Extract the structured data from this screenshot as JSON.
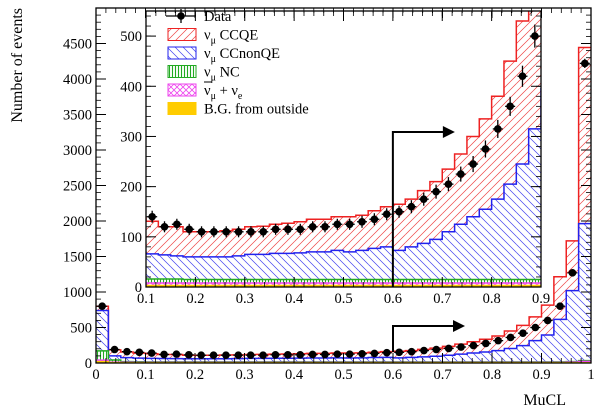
{
  "chart_data": [
    {
      "type": "histogram",
      "panel": "main",
      "xlabel": "MuCL",
      "ylabel": "Number of events",
      "xlim": [
        0,
        1
      ],
      "ylim": [
        0,
        5000
      ],
      "x_ticks": [
        0,
        0.1,
        0.2,
        0.3,
        0.4,
        0.5,
        0.6,
        0.7,
        0.8,
        0.9,
        1
      ],
      "x_tick_labels": [
        "0",
        "0.1",
        "0.2",
        "0.3",
        "0.4",
        "0.5",
        "0.6",
        "0.7",
        "0.8",
        "0.9",
        "1"
      ],
      "y_ticks": [
        0,
        500,
        1000,
        1500,
        2000,
        2500,
        3000,
        3500,
        4000,
        4500
      ],
      "y_tick_labels": [
        "0",
        "500",
        "1000",
        "1500",
        "2000",
        "2500",
        "3000",
        "3500",
        "4000",
        "4500"
      ],
      "bin_edges": [
        0,
        0.025,
        0.05,
        0.075,
        0.1,
        0.125,
        0.15,
        0.175,
        0.2,
        0.225,
        0.25,
        0.275,
        0.3,
        0.325,
        0.35,
        0.375,
        0.4,
        0.425,
        0.45,
        0.475,
        0.5,
        0.525,
        0.55,
        0.575,
        0.6,
        0.625,
        0.65,
        0.675,
        0.7,
        0.725,
        0.75,
        0.775,
        0.8,
        0.825,
        0.85,
        0.875,
        0.9,
        0.925,
        0.95,
        0.975,
        1
      ],
      "data_points": {
        "x": [
          0.0125,
          0.0375,
          0.0625,
          0.0875,
          0.1125,
          0.1375,
          0.1625,
          0.1875,
          0.2125,
          0.2375,
          0.2625,
          0.2875,
          0.3125,
          0.3375,
          0.3625,
          0.3875,
          0.4125,
          0.4375,
          0.4625,
          0.4875,
          0.5125,
          0.5375,
          0.5625,
          0.5875,
          0.6125,
          0.6375,
          0.6625,
          0.6875,
          0.7125,
          0.7375,
          0.7625,
          0.7875,
          0.8125,
          0.8375,
          0.8625,
          0.8875,
          0.9125,
          0.9375,
          0.9625,
          0.9875
        ],
        "y": [
          800,
          190,
          160,
          150,
          140,
          120,
          125,
          115,
          110,
          110,
          110,
          110,
          110,
          110,
          115,
          115,
          115,
          120,
          120,
          125,
          125,
          130,
          135,
          145,
          150,
          160,
          175,
          190,
          205,
          225,
          245,
          275,
          315,
          360,
          420,
          500,
          600,
          800,
          1270,
          4220
        ],
        "errors": [
          30,
          15,
          13,
          12,
          12,
          11,
          11,
          11,
          11,
          11,
          11,
          11,
          11,
          11,
          11,
          11,
          11,
          11,
          11,
          11,
          11,
          12,
          12,
          12,
          12,
          13,
          13,
          14,
          14,
          15,
          16,
          17,
          18,
          19,
          21,
          23,
          25,
          28,
          36,
          65
        ]
      },
      "series": [
        {
          "name": "B.G. from outside",
          "values": [
            20,
            5,
            4,
            3,
            3,
            3,
            3,
            3,
            3,
            3,
            3,
            3,
            3,
            3,
            3,
            3,
            3,
            3,
            3,
            3,
            3,
            3,
            3,
            3,
            3,
            3,
            3,
            3,
            3,
            3,
            3,
            3,
            3,
            3,
            3,
            3,
            3,
            3,
            3,
            3
          ]
        },
        {
          "name": "ν̄μ + νe",
          "values": [
            20,
            8,
            6,
            5,
            5,
            5,
            5,
            5,
            5,
            5,
            5,
            5,
            5,
            5,
            5,
            5,
            5,
            5,
            5,
            5,
            5,
            5,
            5,
            5,
            5,
            5,
            5,
            5,
            5,
            5,
            5,
            5,
            5,
            5,
            5,
            5,
            5,
            5,
            10,
            20
          ]
        },
        {
          "name": "νμ NC",
          "values": [
            130,
            30,
            10,
            9,
            8,
            8,
            8,
            7,
            7,
            7,
            7,
            7,
            7,
            7,
            7,
            7,
            7,
            7,
            7,
            7,
            7,
            7,
            7,
            7,
            7,
            7,
            7,
            7,
            7,
            7,
            7,
            7,
            7,
            7,
            7,
            7,
            7,
            7,
            7,
            10
          ]
        },
        {
          "name": "νμ CCnonQE",
          "values": [
            570,
            57,
            55,
            52,
            50,
            48,
            46,
            45,
            45,
            45,
            45,
            47,
            50,
            50,
            52,
            52,
            53,
            55,
            55,
            58,
            55,
            58,
            62,
            65,
            58,
            65,
            72,
            80,
            95,
            110,
            125,
            140,
            160,
            190,
            230,
            300,
            380,
            600,
            1000,
            1930
          ]
        },
        {
          "name": "νμ CCQE",
          "values": [
            60,
            85,
            80,
            70,
            65,
            56,
            58,
            50,
            50,
            50,
            52,
            53,
            55,
            56,
            58,
            60,
            62,
            65,
            65,
            67,
            70,
            70,
            75,
            80,
            92,
            95,
            105,
            115,
            125,
            140,
            160,
            180,
            205,
            245,
            285,
            335,
            420,
            600,
            700,
            2480
          ]
        }
      ],
      "colors": {
        "B.G. from outside": "#ffcc00",
        "ν̄μ + νe": "#ee44ee",
        "νμ NC": "#22aa22",
        "νμ CCnonQE": "#2222ee",
        "νμ CCQE": "#ee2222",
        "Data": "#000000"
      },
      "annotation": {
        "type": "arrow",
        "from_x": 0.6,
        "direction": "right"
      },
      "grid": false
    },
    {
      "type": "histogram",
      "panel": "inset",
      "xlim": [
        0.1,
        0.9
      ],
      "ylim": [
        0,
        550
      ],
      "x_ticks": [
        0.1,
        0.2,
        0.3,
        0.4,
        0.5,
        0.6,
        0.7,
        0.8,
        0.9
      ],
      "x_tick_labels": [
        "0.1",
        "0.2",
        "0.3",
        "0.4",
        "0.5",
        "0.6",
        "0.7",
        "0.8",
        "0.9"
      ],
      "y_ticks": [
        0,
        100,
        200,
        300,
        400,
        500
      ],
      "y_tick_labels": [
        "0",
        "100",
        "200",
        "300",
        "400",
        "500"
      ],
      "legend": {
        "position": "top-left",
        "entries": [
          {
            "label": "Data",
            "style": "marker"
          },
          {
            "label": "ν_μ CCQE",
            "base": "ν",
            "sub": "μ",
            "rest": " CCQE",
            "style": "hatch-red"
          },
          {
            "label": "ν_μ CCnonQE",
            "base": "ν",
            "sub": "μ",
            "rest": " CCnonQE",
            "style": "hatch-blue"
          },
          {
            "label": "ν_μ NC",
            "base": "ν",
            "sub": "μ",
            "rest": " NC",
            "style": "vertical-green"
          },
          {
            "label": "ν̄_μ + ν_e",
            "base": "ν",
            "sub": "μ",
            "rest": " + ν",
            "sub2": "e",
            "style": "cross-magenta"
          },
          {
            "label": "B.G. from outside",
            "style": "solid-yellow"
          }
        ]
      },
      "annotation": {
        "type": "arrow",
        "from_x": 0.6,
        "direction": "right"
      },
      "grid": false
    }
  ]
}
